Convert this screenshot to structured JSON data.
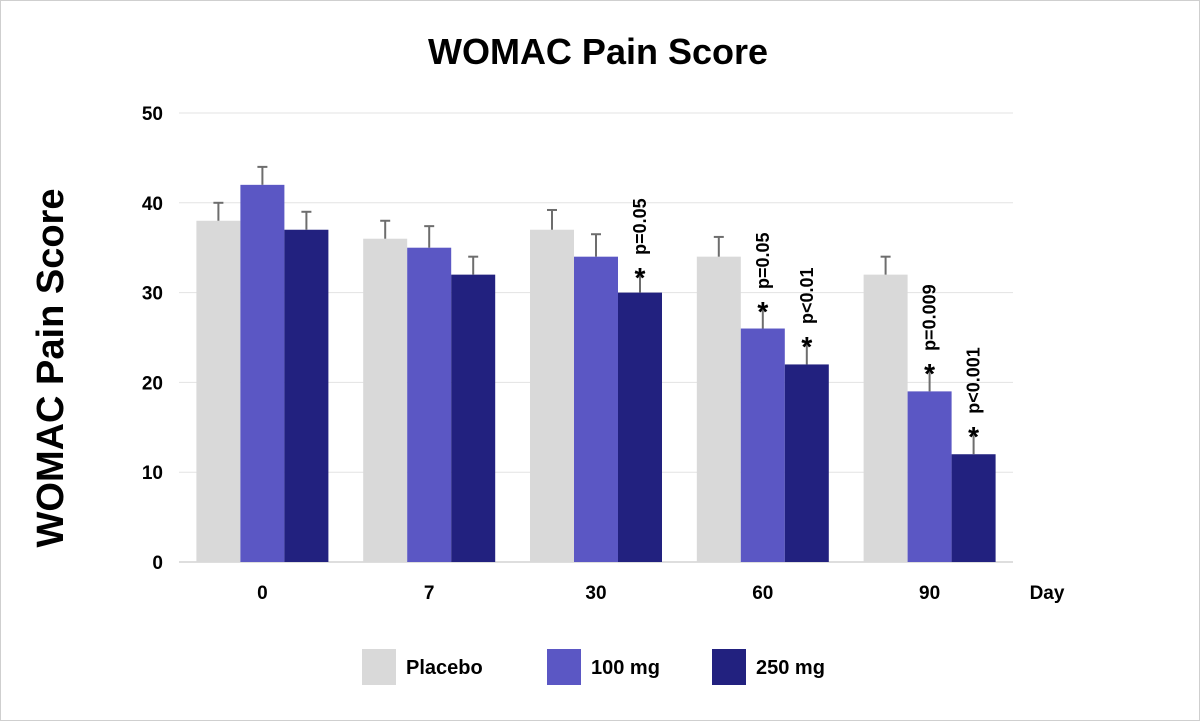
{
  "chart_data": {
    "type": "bar",
    "title": "WOMAC Pain Score",
    "xlabel": "Day",
    "ylabel": "WOMAC Pain Score",
    "ylim": [
      0,
      50
    ],
    "yticks": [
      0,
      10,
      20,
      30,
      40,
      50
    ],
    "grid": true,
    "legend_position": "bottom",
    "categories": [
      "0",
      "7",
      "30",
      "60",
      "90"
    ],
    "series": [
      {
        "name": "Placebo",
        "color": "#d9d9d9",
        "values": [
          38,
          36,
          37,
          34,
          32
        ],
        "errors": [
          2,
          2,
          2.2,
          2.2,
          2
        ]
      },
      {
        "name": "100 mg",
        "color": "#5b57c4",
        "values": [
          42,
          35,
          34,
          26,
          19
        ],
        "errors": [
          2,
          2.4,
          2.5,
          2.4,
          2.5
        ]
      },
      {
        "name": "250 mg",
        "color": "#22217f",
        "values": [
          37,
          32,
          30,
          22,
          12
        ],
        "errors": [
          2,
          2,
          2.2,
          2.5,
          2.5
        ]
      }
    ],
    "annotations": [
      {
        "series": 2,
        "category": 2,
        "star": "*",
        "text": "p=0.05"
      },
      {
        "series": 1,
        "category": 3,
        "star": "*",
        "text": "p=0.05"
      },
      {
        "series": 2,
        "category": 3,
        "star": "*",
        "text": "p<0.01"
      },
      {
        "series": 1,
        "category": 4,
        "star": "*",
        "text": "p=0.009"
      },
      {
        "series": 2,
        "category": 4,
        "star": "*",
        "text": "p<0.001"
      }
    ]
  }
}
